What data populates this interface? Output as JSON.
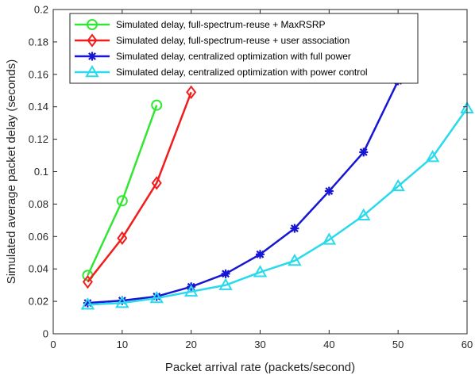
{
  "chart_data": {
    "type": "line",
    "title": "",
    "xlabel": "Packet arrival rate (packets/second)",
    "ylabel": "Simulated average packet delay (seconds)",
    "xlim": [
      0,
      60
    ],
    "ylim": [
      0,
      0.2
    ],
    "xticks": [
      "0",
      "10",
      "20",
      "30",
      "40",
      "50",
      "60"
    ],
    "yticks": [
      "0",
      "0.02",
      "0.04",
      "0.06",
      "0.08",
      "0.1",
      "0.12",
      "0.14",
      "0.16",
      "0.18",
      "0.2"
    ],
    "grid": false,
    "legend_position": "top-right",
    "series": [
      {
        "name": "Simulated delay, full-spectrum-reuse + MaxRSRP",
        "color": "#33e633",
        "marker": "circle",
        "x": [
          5,
          10,
          15
        ],
        "y": [
          0.036,
          0.082,
          0.141
        ]
      },
      {
        "name": "Simulated delay, full-spectrum-reuse + user association",
        "color": "#f21c1c",
        "marker": "diamond",
        "x": [
          5,
          10,
          15,
          20
        ],
        "y": [
          0.032,
          0.059,
          0.093,
          0.149
        ]
      },
      {
        "name": "Simulated delay, centralized optimization with full power",
        "color": "#1616d4",
        "marker": "asterisk",
        "x": [
          5,
          10,
          15,
          20,
          25,
          30,
          35,
          40,
          45,
          50
        ],
        "y": [
          0.019,
          0.0205,
          0.023,
          0.029,
          0.037,
          0.049,
          0.065,
          0.088,
          0.112,
          0.156
        ]
      },
      {
        "name": "Simulated delay, centralized optimization with power control",
        "color": "#29d9ec",
        "marker": "triangle",
        "x": [
          5,
          10,
          15,
          20,
          25,
          30,
          35,
          40,
          45,
          50,
          55,
          60
        ],
        "y": [
          0.018,
          0.019,
          0.022,
          0.026,
          0.03,
          0.038,
          0.045,
          0.058,
          0.073,
          0.091,
          0.109,
          0.139
        ]
      }
    ]
  }
}
